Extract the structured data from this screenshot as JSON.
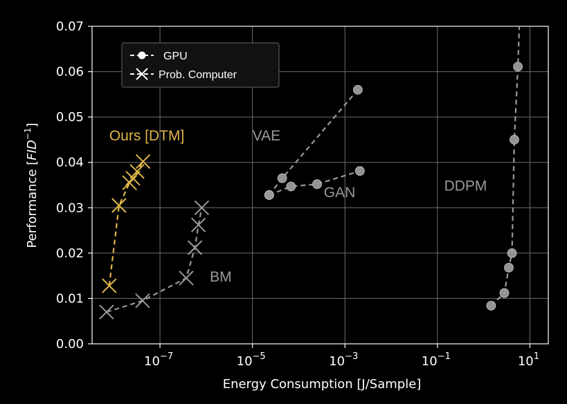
{
  "chart_data": {
    "type": "scatter",
    "title": "",
    "xlabel": "Energy Consumption [J/Sample]",
    "ylabel": "Performance [FID⁻¹]",
    "ylabel_parts": {
      "main": "Performance [",
      "italic": "FID",
      "sup": "−1",
      "close": "]"
    },
    "xscale": "log",
    "xlim": [
      3.4e-09,
      25
    ],
    "ylim": [
      0,
      0.07
    ],
    "grid": true,
    "legend_position": "top-left",
    "xticks": [
      {
        "value": 1e-07,
        "base": "10",
        "exp": "−7"
      },
      {
        "value": 1e-05,
        "base": "10",
        "exp": "−5"
      },
      {
        "value": 0.001,
        "base": "10",
        "exp": "−3"
      },
      {
        "value": 0.1,
        "base": "10",
        "exp": "−1"
      },
      {
        "value": 10,
        "base": "10",
        "exp": "1"
      }
    ],
    "yticks": [
      {
        "value": 0.0,
        "label": "0.00"
      },
      {
        "value": 0.01,
        "label": "0.01"
      },
      {
        "value": 0.02,
        "label": "0.02"
      },
      {
        "value": 0.03,
        "label": "0.03"
      },
      {
        "value": 0.04,
        "label": "0.04"
      },
      {
        "value": 0.05,
        "label": "0.05"
      },
      {
        "value": 0.06,
        "label": "0.06"
      },
      {
        "value": 0.07,
        "label": "0.07"
      }
    ],
    "legend": [
      {
        "label": "GPU",
        "marker": "circle"
      },
      {
        "label": "Prob. Computer",
        "marker": "x"
      }
    ],
    "series": [
      {
        "name": "Ours [DTM]",
        "marker": "x",
        "color": "#e0b64a",
        "x": [
          8e-09,
          1.3e-08,
          2.2e-08,
          2.6e-08,
          3.2e-08,
          4.3e-08
        ],
        "y": [
          0.0128,
          0.0305,
          0.0355,
          0.0365,
          0.038,
          0.0402
        ]
      },
      {
        "name": "BM",
        "marker": "x",
        "color": "#9a9a9a",
        "x": [
          7e-09,
          4.2e-08,
          3.7e-07,
          5.7e-07,
          6.8e-07,
          8e-07
        ],
        "y": [
          0.007,
          0.0095,
          0.0145,
          0.0212,
          0.0262,
          0.03
        ]
      },
      {
        "name": "VAE",
        "marker": "circle",
        "color": "#9a9a9a",
        "x": [
          2.3e-05,
          4.4e-05,
          0.0019
        ],
        "y": [
          0.0328,
          0.0365,
          0.056
        ]
      },
      {
        "name": "GAN",
        "marker": "circle",
        "color": "#9a9a9a",
        "x": [
          2.3e-05,
          6.8e-05,
          0.00025,
          0.0021
        ],
        "y": [
          0.0328,
          0.0347,
          0.0352,
          0.0381
        ]
      },
      {
        "name": "DDPM",
        "marker": "circle",
        "color": "#9a9a9a",
        "x": [
          1.45,
          2.8,
          3.5,
          4.1,
          4.6,
          5.5,
          5.9
        ],
        "y": [
          0.0084,
          0.0112,
          0.0168,
          0.02,
          0.045,
          0.0611,
          0.072
        ]
      }
    ],
    "annotations": [
      {
        "text": "Ours [DTM]",
        "series": "Ours [DTM]",
        "x": 8e-09,
        "y": 0.0448,
        "color": "#e0b64a"
      },
      {
        "text": "BM",
        "series": "BM",
        "x": 1.2e-06,
        "y": 0.0137,
        "color": "#9a9a9a"
      },
      {
        "text": "VAE",
        "series": "VAE",
        "x": 1e-05,
        "y": 0.0448,
        "color": "#9a9a9a"
      },
      {
        "text": "GAN",
        "series": "GAN",
        "x": 0.00035,
        "y": 0.0323,
        "color": "#9a9a9a"
      },
      {
        "text": "DDPM",
        "series": "DDPM",
        "x": 0.14,
        "y": 0.0338,
        "color": "#9a9a9a"
      }
    ]
  }
}
